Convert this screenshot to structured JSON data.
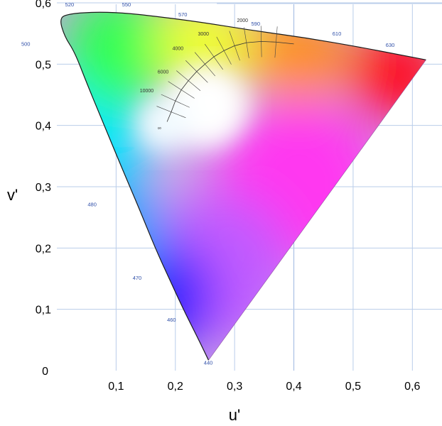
{
  "chart_data": {
    "type": "scatter",
    "description_type": "CIE 1976 UCS chromaticity diagram",
    "xlabel": "u'",
    "ylabel": "v'",
    "xlim": [
      0,
      0.65
    ],
    "ylim": [
      0,
      0.6
    ],
    "x_ticks": [
      {
        "value": 0.1,
        "label": "0,1"
      },
      {
        "value": 0.2,
        "label": "0,2"
      },
      {
        "value": 0.3,
        "label": "0,3"
      },
      {
        "value": 0.4,
        "label": "0,4"
      },
      {
        "value": 0.5,
        "label": "0,5"
      },
      {
        "value": 0.6,
        "label": "0,6"
      }
    ],
    "y_ticks": [
      {
        "value": 0.0,
        "label": "0"
      },
      {
        "value": 0.1,
        "label": "0,1"
      },
      {
        "value": 0.2,
        "label": "0,2"
      },
      {
        "value": 0.3,
        "label": "0,3"
      },
      {
        "value": 0.4,
        "label": "0,4"
      },
      {
        "value": 0.5,
        "label": "0,5"
      },
      {
        "value": 0.6,
        "label": "0,6"
      }
    ],
    "grid": true,
    "spectral_locus": [
      [
        0.256,
        0.017
      ],
      [
        0.237,
        0.055
      ],
      [
        0.215,
        0.097
      ],
      [
        0.192,
        0.145
      ],
      [
        0.166,
        0.2
      ],
      [
        0.14,
        0.262
      ],
      [
        0.11,
        0.33
      ],
      [
        0.08,
        0.4
      ],
      [
        0.05,
        0.47
      ],
      [
        0.03,
        0.52
      ],
      [
        0.013,
        0.545
      ],
      [
        0.004,
        0.575
      ],
      [
        0.02,
        0.582
      ],
      [
        0.06,
        0.585
      ],
      [
        0.11,
        0.584
      ],
      [
        0.166,
        0.578
      ],
      [
        0.24,
        0.569
      ],
      [
        0.33,
        0.555
      ],
      [
        0.42,
        0.543
      ],
      [
        0.51,
        0.528
      ],
      [
        0.58,
        0.515
      ],
      [
        0.623,
        0.507
      ]
    ],
    "wavelength_labels": [
      {
        "label": "440",
        "u": 0.248,
        "v": 0.01
      },
      {
        "label": "460",
        "u": 0.186,
        "v": 0.08
      },
      {
        "label": "470",
        "u": 0.128,
        "v": 0.148
      },
      {
        "label": "480",
        "u": 0.052,
        "v": 0.268
      },
      {
        "label": "500",
        "u": -0.06,
        "v": 0.53
      },
      {
        "label": "520",
        "u": 0.014,
        "v": 0.594
      },
      {
        "label": "550",
        "u": 0.11,
        "v": 0.594
      },
      {
        "label": "570",
        "u": 0.205,
        "v": 0.578
      },
      {
        "label": "590",
        "u": 0.328,
        "v": 0.563
      },
      {
        "label": "610",
        "u": 0.465,
        "v": 0.547
      },
      {
        "label": "630",
        "u": 0.555,
        "v": 0.528
      }
    ],
    "planckian_locus": [
      [
        0.186,
        0.406
      ],
      [
        0.193,
        0.422
      ],
      [
        0.2,
        0.44
      ],
      [
        0.21,
        0.458
      ],
      [
        0.222,
        0.473
      ],
      [
        0.236,
        0.488
      ],
      [
        0.25,
        0.5
      ],
      [
        0.265,
        0.512
      ],
      [
        0.282,
        0.522
      ],
      [
        0.3,
        0.53
      ],
      [
        0.32,
        0.535
      ],
      [
        0.345,
        0.537
      ],
      [
        0.37,
        0.536
      ],
      [
        0.4,
        0.533
      ]
    ],
    "cct_labels": [
      {
        "label": "2000",
        "u": 0.304,
        "v": 0.569
      },
      {
        "label": "3000",
        "u": 0.238,
        "v": 0.547
      },
      {
        "label": "4000",
        "u": 0.195,
        "v": 0.523
      },
      {
        "label": "6000",
        "u": 0.17,
        "v": 0.485
      },
      {
        "label": "10000",
        "u": 0.14,
        "v": 0.454
      },
      {
        "label": "∞",
        "u": 0.17,
        "v": 0.393
      }
    ]
  }
}
